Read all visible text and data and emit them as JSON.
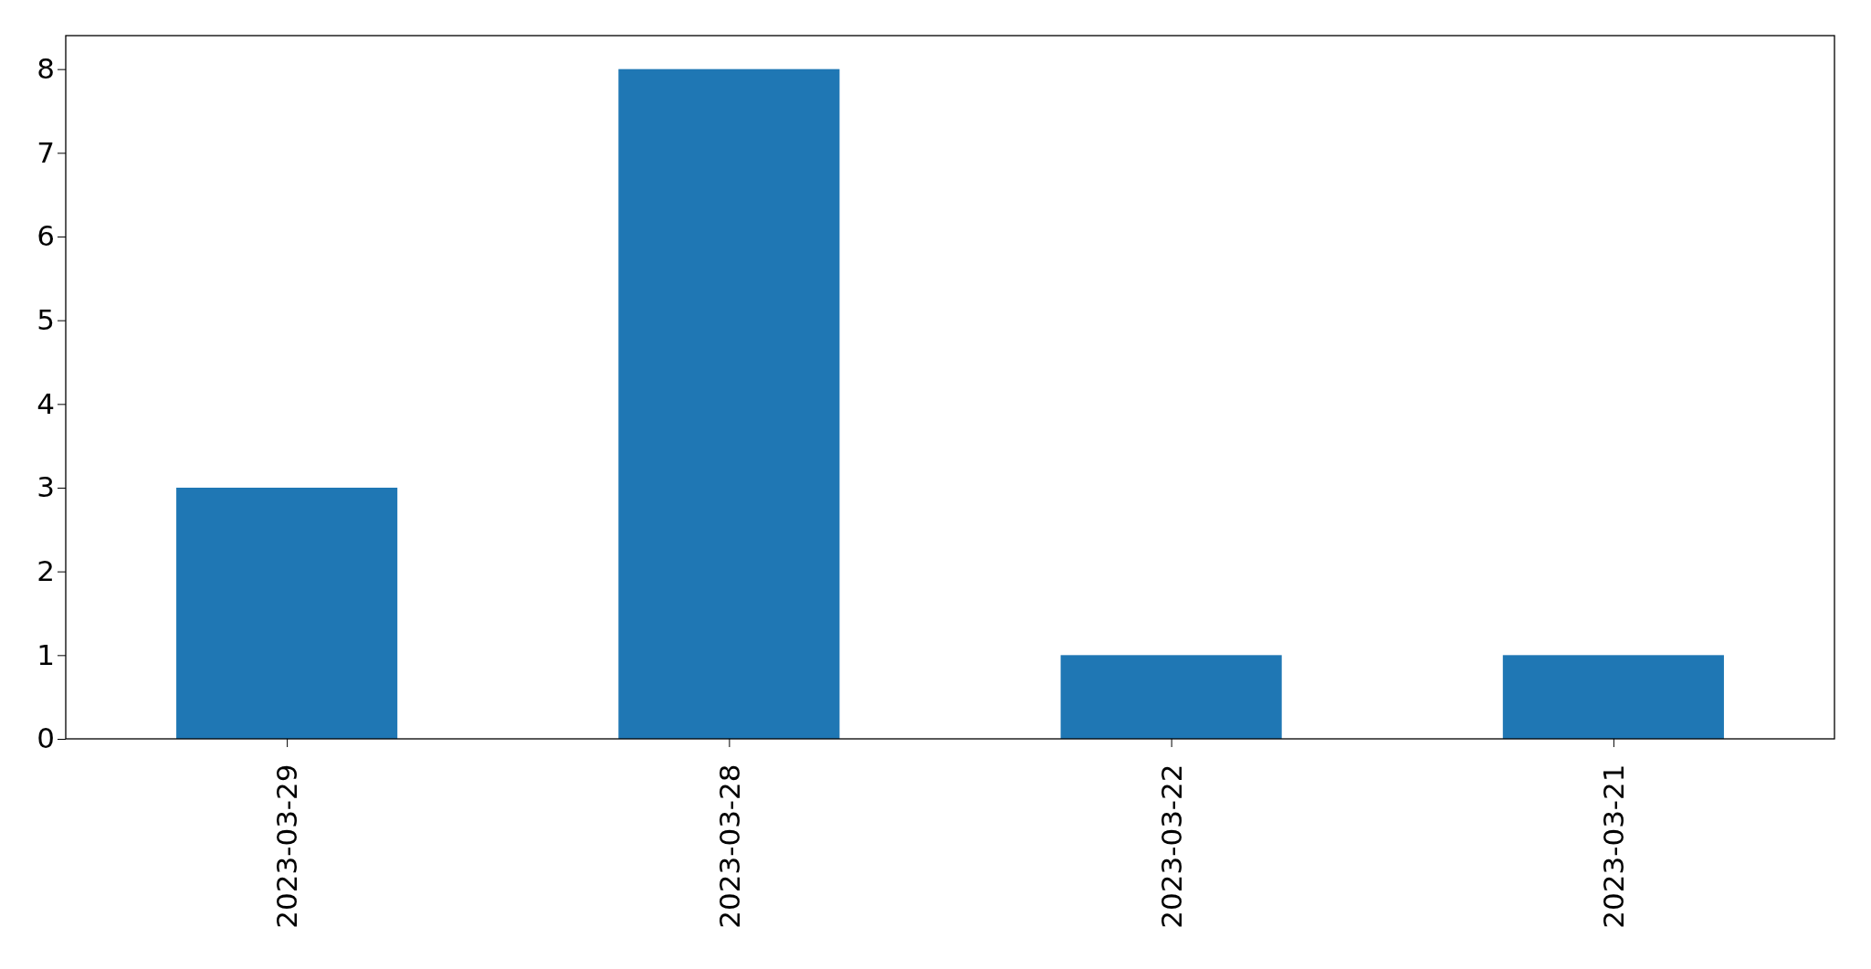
{
  "chart_data": {
    "type": "bar",
    "categories": [
      "2023-03-29",
      "2023-03-28",
      "2023-03-22",
      "2023-03-21"
    ],
    "values": [
      3,
      8,
      1,
      1
    ],
    "color": "#1f77b4",
    "ylim": [
      0,
      8.4
    ],
    "yticks": [
      0,
      1,
      2,
      3,
      4,
      5,
      6,
      7,
      8
    ],
    "grid": false
  }
}
